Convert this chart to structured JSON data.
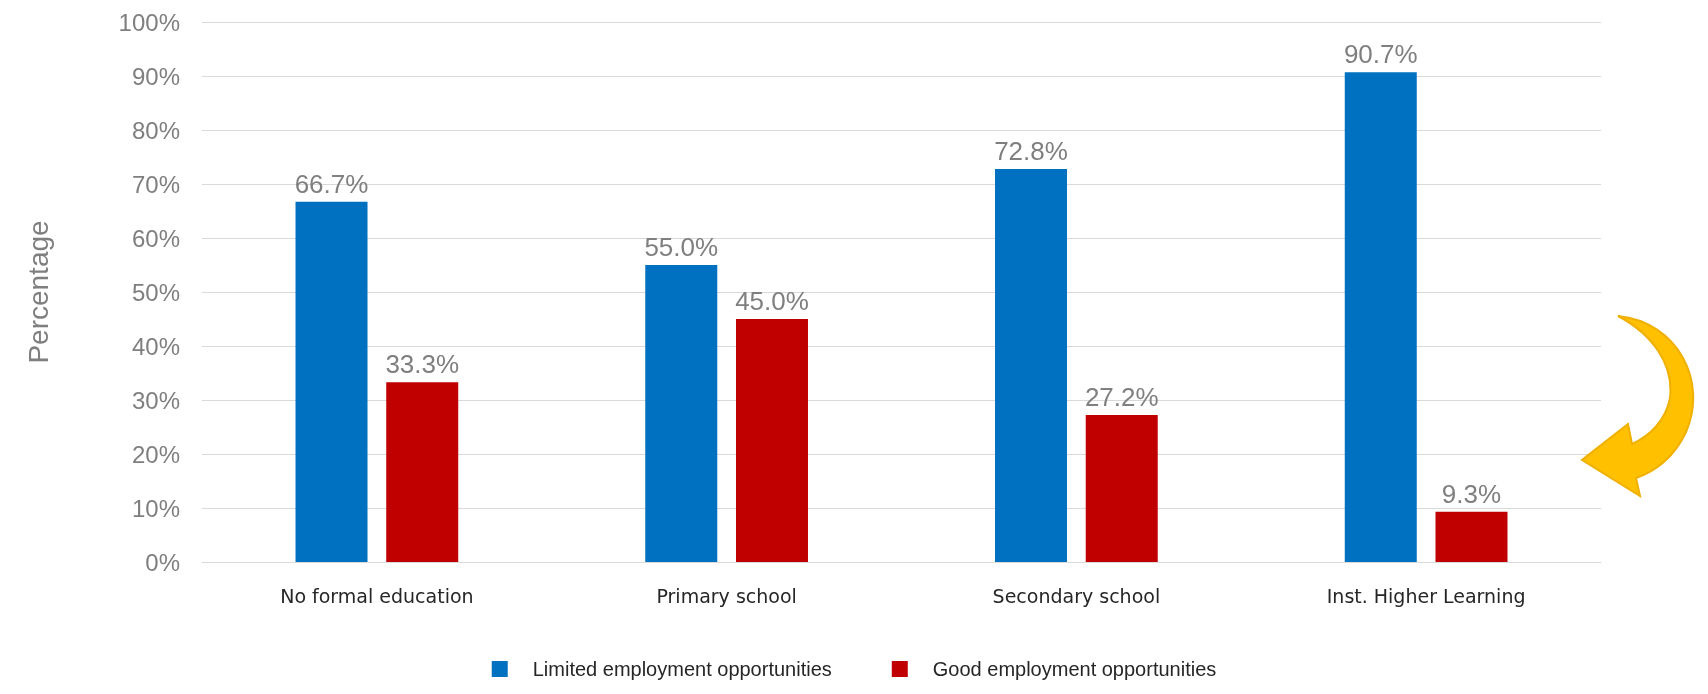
{
  "chart_data": {
    "type": "bar",
    "ylabel": "Percentage",
    "categories": [
      "No formal education",
      "Primary school",
      "Secondary school",
      "Inst. Higher Learning"
    ],
    "series": [
      {
        "name": "Limited employment opportunities",
        "color": "#0070c0",
        "values": [
          66.7,
          55.0,
          72.8,
          90.7
        ],
        "value_labels": [
          "66.7%",
          "55.0%",
          "72.8%",
          "90.7%"
        ]
      },
      {
        "name": "Good employment opportunities",
        "color": "#c00000",
        "values": [
          33.3,
          45.0,
          27.2,
          9.3
        ],
        "value_labels": [
          "33.3%",
          "45.0%",
          "27.2%",
          "9.3%"
        ]
      }
    ],
    "ylim": [
      0,
      100
    ],
    "yticks": [
      {
        "value": 0,
        "label": "0%"
      },
      {
        "value": 10,
        "label": "10%"
      },
      {
        "value": 20,
        "label": "20%"
      },
      {
        "value": 30,
        "label": "30%"
      },
      {
        "value": 40,
        "label": "40%"
      },
      {
        "value": 50,
        "label": "50%"
      },
      {
        "value": 60,
        "label": "60%"
      },
      {
        "value": 70,
        "label": "70%"
      },
      {
        "value": 80,
        "label": "80%"
      },
      {
        "value": 90,
        "label": "90%"
      },
      {
        "value": 100,
        "label": "100%"
      }
    ],
    "grid": "y",
    "legend": "bottom"
  }
}
